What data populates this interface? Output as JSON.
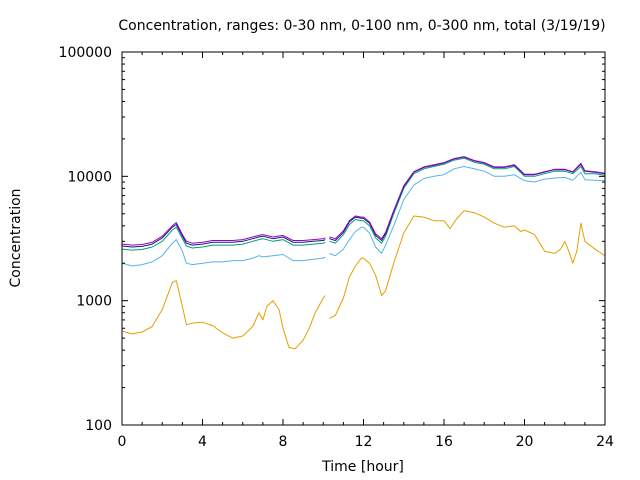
{
  "chart_data": {
    "type": "line",
    "title": "Concentration, ranges: 0-30 nm, 0-100 nm, 0-300 nm, total (3/19/19)",
    "xlabel": "Time [hour]",
    "ylabel": "Concentration",
    "xlim": [
      0,
      24
    ],
    "ylim": [
      100,
      100000
    ],
    "yscale": "log",
    "grid": false,
    "legend": "none",
    "xticks": [
      0,
      4,
      8,
      12,
      16,
      20,
      24
    ],
    "xtick_labels": [
      "0",
      "4",
      "8",
      "12",
      "16",
      "20",
      "24"
    ],
    "yticks": [
      100,
      1000,
      10000,
      100000
    ],
    "ytick_labels": [
      "100",
      "1000",
      "10000",
      "100000"
    ],
    "series": [
      {
        "color": "#e69f00",
        "x": [
          0,
          0.5,
          1,
          1.5,
          2,
          2.5,
          2.7,
          3,
          3.2,
          3.5,
          4,
          4.5,
          5,
          5.5,
          6,
          6.5,
          6.8,
          7,
          7.2,
          7.5,
          7.8,
          8,
          8.3,
          8.6,
          9,
          9.3,
          9.6,
          10,
          10.1,
          null,
          10.3,
          10.6,
          11,
          11.3,
          11.6,
          11.9,
          12,
          12.3,
          12.6,
          12.9,
          13.1,
          13.5,
          14,
          14.5,
          15,
          15.5,
          16,
          16.3,
          16.6,
          17,
          17.5,
          18,
          18.5,
          19,
          19.5,
          19.8,
          20,
          20.5,
          21,
          21.5,
          21.8,
          22,
          22.2,
          22.4,
          22.6,
          22.8,
          23,
          23.5,
          24
        ],
        "y": [
          570,
          540,
          560,
          620,
          850,
          1400,
          1450,
          900,
          640,
          660,
          670,
          630,
          550,
          500,
          520,
          620,
          800,
          700,
          900,
          1000,
          850,
          600,
          420,
          410,
          480,
          600,
          800,
          1050,
          1100,
          null,
          720,
          760,
          1050,
          1550,
          1900,
          2200,
          2200,
          2000,
          1600,
          1100,
          1200,
          2000,
          3500,
          4800,
          4700,
          4400,
          4400,
          3800,
          4500,
          5300,
          5100,
          4700,
          4200,
          3900,
          4000,
          3600,
          3700,
          3400,
          2500,
          2400,
          2600,
          3000,
          2500,
          2000,
          2500,
          4200,
          3000,
          2600,
          2300
        ]
      },
      {
        "color": "#56b4e9",
        "x": [
          0,
          0.5,
          1,
          1.5,
          2,
          2.5,
          2.7,
          3,
          3.2,
          3.5,
          4,
          4.5,
          5,
          5.5,
          6,
          6.5,
          6.8,
          7,
          7.5,
          8,
          8.5,
          9,
          9.5,
          10,
          10.1,
          null,
          10.3,
          10.6,
          11,
          11.3,
          11.6,
          11.9,
          12,
          12.3,
          12.6,
          12.9,
          13.1,
          13.5,
          14,
          14.5,
          15,
          15.5,
          16,
          16.5,
          17,
          17.5,
          18,
          18.5,
          19,
          19.5,
          20,
          20.5,
          21,
          21.5,
          22,
          22.4,
          22.8,
          23,
          23.5,
          24
        ],
        "y": [
          2000,
          1900,
          1950,
          2050,
          2300,
          2900,
          3100,
          2500,
          2000,
          1950,
          2000,
          2050,
          2050,
          2100,
          2100,
          2200,
          2300,
          2250,
          2300,
          2350,
          2100,
          2100,
          2150,
          2200,
          2250,
          null,
          2400,
          2300,
          2600,
          3100,
          3600,
          3900,
          3900,
          3500,
          2700,
          2400,
          2800,
          4000,
          6500,
          8500,
          9600,
          10000,
          10300,
          11500,
          12000,
          11500,
          11000,
          10000,
          10000,
          10300,
          9200,
          9000,
          9500,
          9700,
          9800,
          9300,
          10800,
          9400,
          9300,
          9200
        ]
      },
      {
        "color": "#009e73",
        "x": [
          0,
          0.5,
          1,
          1.5,
          2,
          2.5,
          2.7,
          3,
          3.2,
          3.5,
          4,
          4.5,
          5,
          5.5,
          6,
          6.5,
          6.8,
          7,
          7.5,
          8,
          8.5,
          9,
          9.5,
          10,
          10.1,
          null,
          10.3,
          10.6,
          11,
          11.3,
          11.6,
          11.9,
          12,
          12.3,
          12.6,
          12.9,
          13.1,
          13.5,
          14,
          14.5,
          15,
          15.5,
          16,
          16.5,
          17,
          17.5,
          18,
          18.5,
          19,
          19.5,
          20,
          20.5,
          21,
          21.5,
          22,
          22.4,
          22.8,
          23,
          23.5,
          24
        ],
        "y": [
          2600,
          2550,
          2580,
          2700,
          3000,
          3700,
          3900,
          3150,
          2750,
          2650,
          2700,
          2800,
          2800,
          2800,
          2850,
          3000,
          3100,
          3150,
          3000,
          3100,
          2800,
          2800,
          2850,
          2900,
          2950,
          null,
          3000,
          2900,
          3400,
          4100,
          4500,
          4400,
          4400,
          4000,
          3200,
          2900,
          3300,
          5000,
          8000,
          10500,
          11500,
          12000,
          12500,
          13500,
          14000,
          13000,
          12500,
          11500,
          11500,
          12000,
          10000,
          10000,
          10500,
          11000,
          11000,
          10500,
          12000,
          10500,
          10500,
          10200
        ]
      },
      {
        "color": "#191970",
        "x": [
          0,
          0.5,
          1,
          1.5,
          2,
          2.5,
          2.7,
          3,
          3.2,
          3.5,
          4,
          4.5,
          5,
          5.5,
          6,
          6.5,
          6.8,
          7,
          7.5,
          8,
          8.5,
          9,
          9.5,
          10,
          10.1,
          null,
          10.3,
          10.6,
          11,
          11.3,
          11.6,
          11.9,
          12,
          12.3,
          12.6,
          12.9,
          13.1,
          13.5,
          14,
          14.5,
          15,
          15.5,
          16,
          16.5,
          17,
          17.5,
          18,
          18.5,
          19,
          19.5,
          20,
          20.5,
          21,
          21.5,
          22,
          22.4,
          22.8,
          23,
          23.5,
          24
        ],
        "y": [
          2750,
          2700,
          2730,
          2850,
          3200,
          3900,
          4100,
          3300,
          2900,
          2800,
          2850,
          2950,
          2950,
          2950,
          3000,
          3150,
          3250,
          3300,
          3150,
          3250,
          2950,
          2950,
          3000,
          3050,
          3100,
          null,
          3150,
          3050,
          3550,
          4300,
          4700,
          4600,
          4600,
          4200,
          3350,
          3050,
          3450,
          5200,
          8300,
          10800,
          11800,
          12300,
          12800,
          13800,
          14300,
          13300,
          12800,
          11800,
          11800,
          12300,
          10300,
          10300,
          10800,
          11300,
          11300,
          10800,
          12500,
          11000,
          10800,
          10500
        ]
      },
      {
        "color": "#9400d3",
        "x": [
          0,
          0.5,
          1,
          1.5,
          2,
          2.5,
          2.7,
          3,
          3.2,
          3.5,
          4,
          4.5,
          5,
          5.5,
          6,
          6.5,
          6.8,
          7,
          7.5,
          8,
          8.5,
          9,
          9.5,
          10,
          10.1,
          null,
          10.3,
          10.6,
          11,
          11.3,
          11.6,
          11.9,
          12,
          12.3,
          12.6,
          12.9,
          13.1,
          13.5,
          14,
          14.5,
          15,
          15.5,
          16,
          16.5,
          17,
          17.5,
          18,
          18.5,
          19,
          19.5,
          20,
          20.5,
          21,
          21.5,
          22,
          22.4,
          22.8,
          23,
          23.5,
          24
        ],
        "y": [
          2850,
          2800,
          2830,
          2950,
          3300,
          4000,
          4250,
          3400,
          3000,
          2900,
          2950,
          3050,
          3050,
          3050,
          3100,
          3250,
          3350,
          3400,
          3250,
          3350,
          3050,
          3050,
          3100,
          3150,
          3200,
          null,
          3250,
          3150,
          3650,
          4400,
          4800,
          4700,
          4700,
          4300,
          3450,
          3150,
          3550,
          5300,
          8400,
          10900,
          11900,
          12400,
          12900,
          13900,
          14400,
          13400,
          12900,
          11900,
          11900,
          12400,
          10400,
          10400,
          10900,
          11400,
          11400,
          10900,
          12700,
          11100,
          10900,
          10600
        ]
      }
    ]
  }
}
